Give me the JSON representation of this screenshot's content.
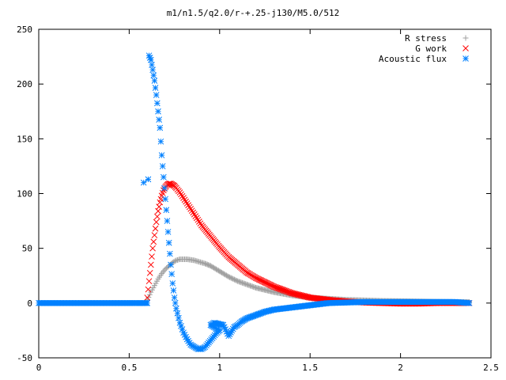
{
  "chart_data": {
    "type": "scatter",
    "title": "m1/n1.5/q2.0/r-+.25-j130/M5.0/512",
    "xlabel": "",
    "ylabel": "",
    "xlim": [
      0,
      2.5
    ],
    "ylim": [
      -50,
      250
    ],
    "x_ticks": [
      "0",
      "0.5",
      "1",
      "1.5",
      "2",
      "2.5"
    ],
    "x_tick_values": [
      0,
      0.5,
      1,
      1.5,
      2,
      2.5
    ],
    "y_ticks": [
      "250",
      "200",
      "150",
      "100",
      "50",
      "0",
      "-50"
    ],
    "y_tick_values": [
      250,
      200,
      150,
      100,
      50,
      0,
      -50
    ],
    "grid": false,
    "legend_position": "top-right",
    "series": [
      {
        "name": "R stress",
        "marker": "plus",
        "color": "#a0a0a0",
        "x": [
          0.6,
          0.62,
          0.64,
          0.66,
          0.68,
          0.7,
          0.72,
          0.74,
          0.76,
          0.78,
          0.8,
          0.82,
          0.84,
          0.86,
          0.88,
          0.9,
          0.92,
          0.95,
          1.0,
          1.05,
          1.1,
          1.15,
          1.2,
          1.3,
          1.4,
          1.5,
          1.6,
          1.7,
          1.8,
          1.9,
          2.0,
          2.1,
          2.2,
          2.3,
          2.38
        ],
        "y": [
          3,
          10,
          16,
          22,
          27,
          31,
          34,
          37,
          39,
          40,
          40,
          40,
          39.5,
          39,
          38,
          37,
          36,
          34,
          29,
          24,
          20,
          17,
          14,
          10,
          7,
          5,
          4,
          3,
          2.5,
          2,
          1.8,
          1.5,
          1.2,
          1,
          1
        ]
      },
      {
        "name": "G work",
        "marker": "cross",
        "color": "#ff0000",
        "x": [
          0.6,
          0.61,
          0.62,
          0.63,
          0.64,
          0.65,
          0.66,
          0.67,
          0.68,
          0.69,
          0.7,
          0.71,
          0.72,
          0.73,
          0.74,
          0.75,
          0.76,
          0.78,
          0.8,
          0.82,
          0.84,
          0.86,
          0.88,
          0.9,
          0.95,
          1.0,
          1.05,
          1.1,
          1.15,
          1.2,
          1.3,
          1.4,
          1.5,
          1.6,
          1.7,
          1.8,
          1.9,
          2.0,
          2.1,
          2.2,
          2.3,
          2.38
        ],
        "y": [
          5,
          20,
          35,
          50,
          62,
          74,
          84,
          92,
          98,
          103,
          106,
          108,
          109,
          109,
          108,
          107,
          105,
          101,
          96,
          91,
          86,
          81,
          76,
          71,
          61,
          51,
          42,
          35,
          28,
          23,
          15,
          9,
          5,
          3,
          1.5,
          0.5,
          0,
          -0.5,
          -0.5,
          0,
          0,
          0
        ]
      },
      {
        "name": "Acoustic flux",
        "marker": "star",
        "color": "#0080ff",
        "x": [
          0,
          0.1,
          0.2,
          0.3,
          0.4,
          0.5,
          0.55,
          0.58,
          0.59,
          0.6,
          0.61,
          0.62,
          0.63,
          0.64,
          0.65,
          0.66,
          0.67,
          0.68,
          0.69,
          0.7,
          0.71,
          0.72,
          0.73,
          0.74,
          0.75,
          0.76,
          0.78,
          0.8,
          0.82,
          0.84,
          0.86,
          0.88,
          0.9,
          0.92,
          0.94,
          0.96,
          0.98,
          1.0,
          0.95,
          0.97,
          1.02,
          1.05,
          1.08,
          1.1,
          1.12,
          1.15,
          1.2,
          1.25,
          1.3,
          1.4,
          1.5,
          1.6,
          1.7,
          1.8,
          1.9,
          2.0,
          2.1,
          2.2,
          2.3,
          2.38
        ],
        "y": [
          0,
          0,
          0,
          0,
          0,
          0,
          0,
          0,
          0,
          0,
          226,
          222,
          213,
          203,
          190,
          175,
          160,
          135,
          115,
          95,
          75,
          55,
          35,
          18,
          5,
          -5,
          -18,
          -27,
          -33,
          -38,
          -40,
          -42,
          -42,
          -40,
          -36,
          -32,
          -28,
          -25,
          -20,
          -18,
          -20,
          -30,
          -22,
          -20,
          -17,
          -14,
          -11,
          -8,
          -6,
          -4,
          -2,
          0,
          0.5,
          1,
          1,
          1,
          1,
          1,
          1,
          0
        ]
      }
    ],
    "extra_points": [
      {
        "series": "Acoustic flux",
        "x": 0.58,
        "y": 110
      }
    ]
  },
  "colors": {
    "axis": "#000000",
    "background": "#ffffff"
  }
}
